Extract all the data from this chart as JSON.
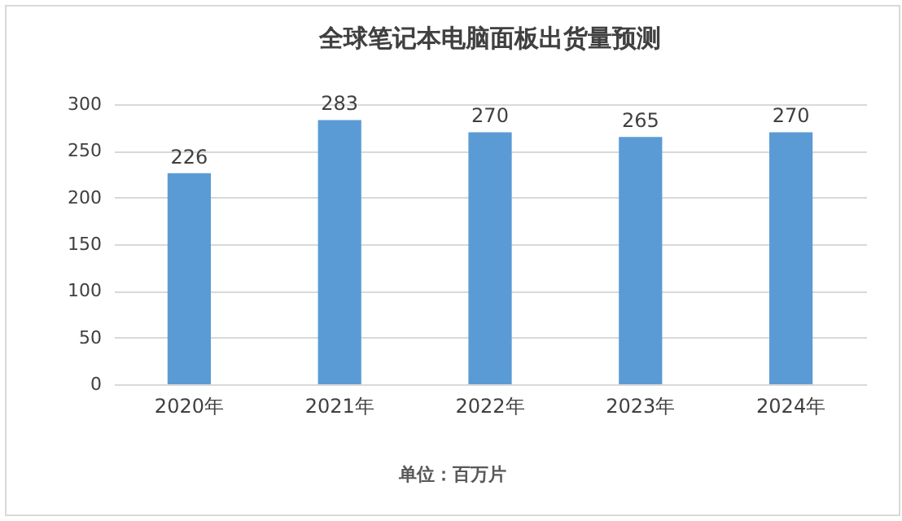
{
  "chart_data": {
    "type": "bar",
    "title": "全球笔记本电脑面板出货量预测",
    "categories": [
      "2020年",
      "2021年",
      "2022年",
      "2023年",
      "2024年"
    ],
    "values": [
      226,
      283,
      270,
      265,
      270
    ],
    "color": "#5b9bd5",
    "ylim": [
      0,
      300
    ],
    "yticks": [
      0,
      50,
      100,
      150,
      200,
      250,
      300
    ],
    "grid": "y",
    "data_labels": true,
    "annotations": [
      "单位：百万片"
    ]
  }
}
